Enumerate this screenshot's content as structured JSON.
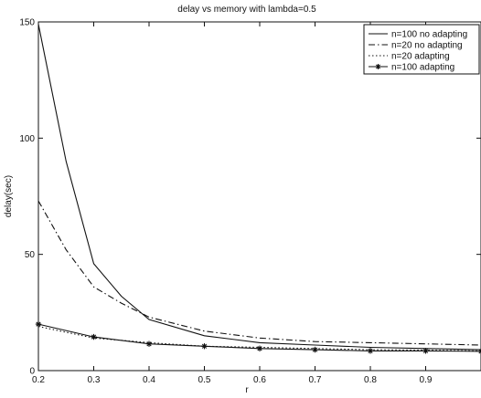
{
  "chart_data": {
    "type": "line",
    "title": "delay vs memory with lambda=0.5",
    "xlabel": "r",
    "ylabel": "delay(sec)",
    "xlim": [
      0.2,
      1.0
    ],
    "ylim": [
      0,
      150
    ],
    "xticks": [
      "0.2",
      "0.3",
      "0.4",
      "0.5",
      "0.6",
      "0.7",
      "0.8",
      "0.9"
    ],
    "yticks": [
      "0",
      "50",
      "100",
      "150"
    ],
    "grid": false,
    "legend_position": "top-right",
    "series": [
      {
        "name": "n=100 no adapting",
        "style": "solid",
        "marker": "none",
        "x": [
          0.2,
          0.25,
          0.3,
          0.35,
          0.4,
          0.5,
          0.6,
          0.7,
          0.8,
          0.9,
          1.0
        ],
        "y": [
          149,
          90,
          46,
          32,
          22,
          15,
          12,
          11,
          10,
          9.5,
          9
        ]
      },
      {
        "name": "n=20 no adapting",
        "style": "dashdot",
        "marker": "none",
        "x": [
          0.2,
          0.25,
          0.3,
          0.35,
          0.4,
          0.5,
          0.6,
          0.7,
          0.8,
          0.9,
          1.0
        ],
        "y": [
          73,
          52,
          36,
          29,
          23,
          17,
          14,
          12.5,
          12,
          11.5,
          11
        ]
      },
      {
        "name": "n=20 adapting",
        "style": "dotted",
        "marker": "none",
        "x": [
          0.2,
          0.3,
          0.4,
          0.5,
          0.6,
          0.7,
          0.8,
          0.9,
          1.0
        ],
        "y": [
          19,
          14,
          12,
          10.5,
          10,
          9.5,
          9,
          8.8,
          8.5
        ]
      },
      {
        "name": "n=100 adapting",
        "style": "solid",
        "marker": "star",
        "x": [
          0.2,
          0.3,
          0.4,
          0.5,
          0.6,
          0.7,
          0.8,
          0.9,
          1.0
        ],
        "y": [
          20,
          14.5,
          11.5,
          10.5,
          9.5,
          9,
          8.5,
          8.5,
          8.3
        ]
      }
    ]
  }
}
